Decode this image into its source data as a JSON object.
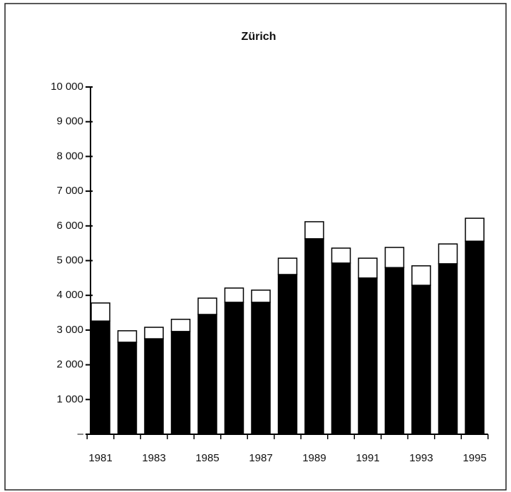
{
  "chart_data": {
    "type": "stacked_bar",
    "title": "Zürich",
    "categories": [
      "1981",
      null,
      "1983",
      null,
      "1985",
      null,
      "1987",
      null,
      "1989",
      null,
      "1991",
      null,
      "1993",
      null,
      "1995"
    ],
    "series": [
      {
        "color": "#000000",
        "values": [
          3260,
          2650,
          2750,
          2960,
          3450,
          3800,
          3800,
          4600,
          5630,
          4930,
          4500,
          4800,
          4290,
          4910,
          5560
        ]
      },
      {
        "color": "#ffffff",
        "values": [
          520,
          330,
          330,
          350,
          470,
          410,
          350,
          470,
          490,
          430,
          570,
          580,
          560,
          570,
          660
        ]
      }
    ],
    "ylim": [
      0,
      10000
    ],
    "yticks": [
      {
        "value": 0,
        "label": "–"
      },
      {
        "value": 1000,
        "label": "1 000"
      },
      {
        "value": 2000,
        "label": "2 000"
      },
      {
        "value": 3000,
        "label": "3 000"
      },
      {
        "value": 4000,
        "label": "4 000"
      },
      {
        "value": 5000,
        "label": "5 000"
      },
      {
        "value": 6000,
        "label": "6 000"
      },
      {
        "value": 7000,
        "label": "7 000"
      },
      {
        "value": 8000,
        "label": "8 000"
      },
      {
        "value": 9000,
        "label": "9 000"
      },
      {
        "value": 10000,
        "label": "10 000"
      }
    ],
    "grid": false
  }
}
